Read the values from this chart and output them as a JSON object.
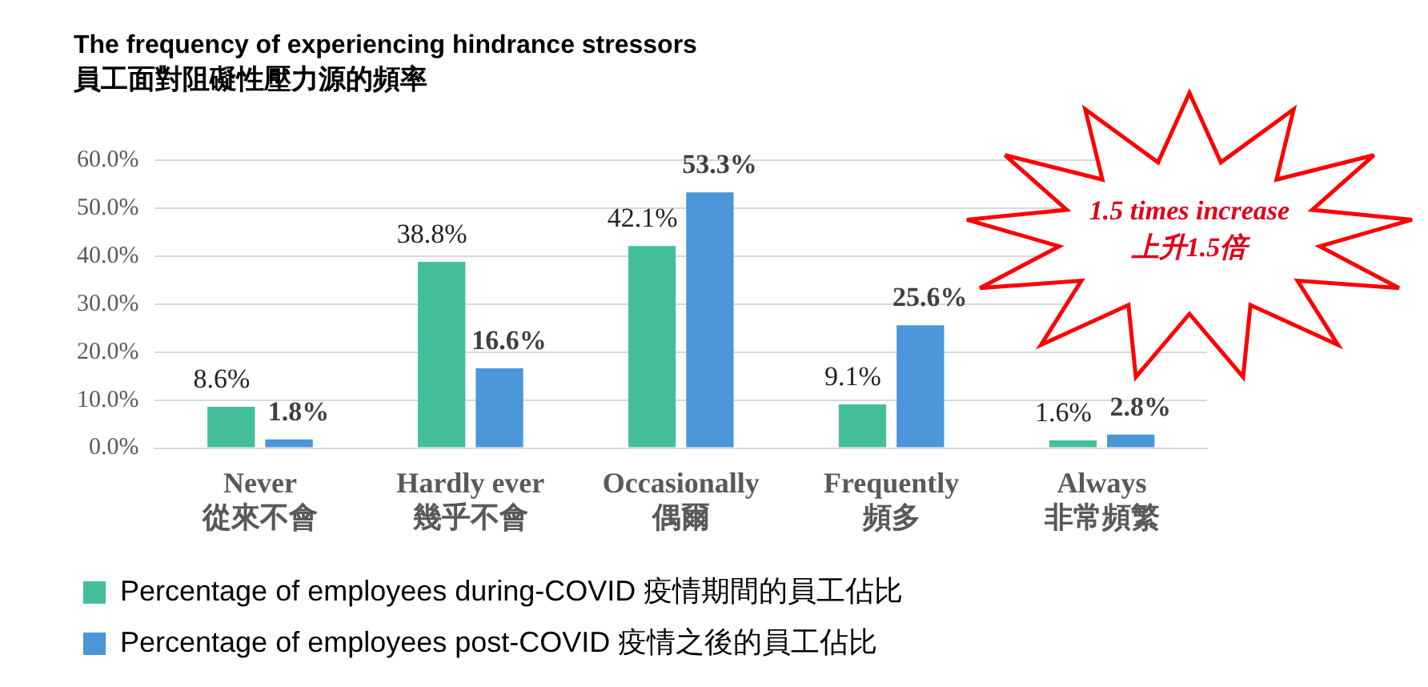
{
  "chart_data": {
    "type": "bar",
    "title": "The frequency of experiencing hindrance stressors",
    "subtitle": "員工面對阻礙性壓力源的頻率",
    "categories": [
      "Never\n從來不會",
      "Hardly ever\n幾乎不會",
      "Occasionally\n偶爾",
      "Frequently\n頻多",
      "Always\n非常頻繁"
    ],
    "series": [
      {
        "name": "Percentage of employees during-COVID 疫情期間的員工佔比",
        "color": "#45bf9b",
        "values": [
          8.6,
          38.8,
          42.1,
          9.1,
          1.6
        ],
        "value_labels": [
          "8.6%",
          "38.8%",
          "42.1%",
          "9.1%",
          "1.6%"
        ]
      },
      {
        "name": "Percentage of employees post-COVID 疫情之後的員工佔比",
        "color": "#4a96d9",
        "values": [
          1.8,
          16.6,
          53.3,
          25.6,
          2.8
        ],
        "value_labels": [
          "1.8%",
          "16.6%",
          "53.3%",
          "25.6%",
          "2.8%"
        ]
      }
    ],
    "ylim": [
      0,
      60
    ],
    "yticks": [
      {
        "value": 0,
        "label": "0.0%"
      },
      {
        "value": 10,
        "label": "10.0%"
      },
      {
        "value": 20,
        "label": "20.0%"
      },
      {
        "value": 30,
        "label": "30.0%"
      },
      {
        "value": 40,
        "label": "40.0%"
      },
      {
        "value": 50,
        "label": "50.0%"
      },
      {
        "value": 60,
        "label": "60.0%"
      }
    ],
    "grid": "y",
    "legend": "bottom left",
    "annotations": [
      "1.5 times increase\n上升1.5倍"
    ]
  }
}
